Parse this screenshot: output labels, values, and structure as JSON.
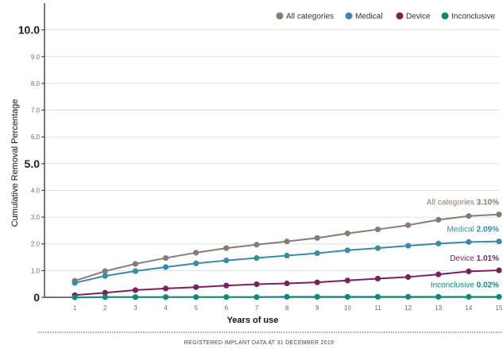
{
  "chart_data": {
    "type": "line",
    "title": "",
    "xlabel": "Years of use",
    "ylabel": "Cumulative Removal Percentage",
    "x": [
      1,
      2,
      3,
      4,
      5,
      6,
      7,
      8,
      9,
      10,
      11,
      12,
      13,
      14,
      15
    ],
    "xlim": [
      0,
      15
    ],
    "ylim": [
      0,
      11
    ],
    "y_ticks": [
      "0",
      "1.0",
      "2.0",
      "3.0",
      "4.0",
      "5.0",
      "6.0",
      "7.0",
      "8.0",
      "9.0",
      "10.0"
    ],
    "y_major_ticks": [
      "0",
      "5.0",
      "10.0"
    ],
    "grid": true,
    "legend_position": "top-right",
    "series": [
      {
        "name": "All categories",
        "color": "#8a7b72",
        "values": [
          0.62,
          0.98,
          1.25,
          1.47,
          1.67,
          1.84,
          1.97,
          2.09,
          2.22,
          2.39,
          2.54,
          2.7,
          2.9,
          3.04,
          3.1
        ],
        "end_label": "All categories",
        "end_value": "3.10%"
      },
      {
        "name": "Medical",
        "color": "#3a8bab",
        "values": [
          0.54,
          0.8,
          0.98,
          1.13,
          1.27,
          1.38,
          1.47,
          1.56,
          1.65,
          1.76,
          1.84,
          1.93,
          2.01,
          2.07,
          2.09
        ],
        "end_label": "Medical",
        "end_value": "2.09%"
      },
      {
        "name": "Device",
        "color": "#7a1f5f",
        "values": [
          0.08,
          0.17,
          0.27,
          0.33,
          0.38,
          0.44,
          0.49,
          0.52,
          0.56,
          0.63,
          0.7,
          0.76,
          0.86,
          0.97,
          1.01
        ],
        "end_label": "Device",
        "end_value": "1.01%"
      },
      {
        "name": "Inconclusive",
        "color": "#0f8a78",
        "values": [
          0.0,
          0.01,
          0.01,
          0.01,
          0.01,
          0.01,
          0.01,
          0.02,
          0.02,
          0.02,
          0.02,
          0.02,
          0.02,
          0.02,
          0.02
        ],
        "end_label": "Inconclusive",
        "end_value": "0.02%"
      }
    ]
  },
  "footer": {
    "text": "REGISTERED IMPLANT DATA AT 31 DECEMBER 2019"
  }
}
